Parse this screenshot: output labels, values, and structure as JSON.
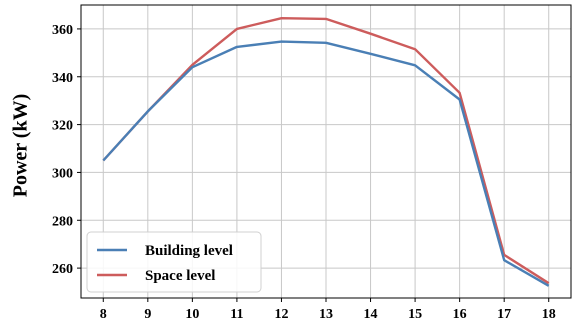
{
  "chart_data": {
    "type": "line",
    "title": "",
    "xlabel": "",
    "ylabel": "Power (kW)",
    "x": [
      8,
      9,
      10,
      11,
      12,
      13,
      14,
      15,
      16,
      17,
      18
    ],
    "xlim": [
      7.5,
      18.5
    ],
    "ylim": [
      247.5,
      370
    ],
    "yticks": [
      260,
      280,
      300,
      320,
      340,
      360
    ],
    "grid": true,
    "legend": "bottom-left",
    "series": [
      {
        "name": "Building level",
        "color": "#4a7fb5",
        "values": [
          305,
          325.5,
          344,
          352.5,
          354.7,
          354.2,
          349.6,
          344.8,
          330.5,
          263.3,
          252.6
        ]
      },
      {
        "name": "Space level",
        "color": "#cd5c5c",
        "values": [
          305,
          325.5,
          345,
          360,
          364.5,
          364.2,
          358,
          351.5,
          333.3,
          265.5,
          253.7
        ]
      }
    ]
  }
}
